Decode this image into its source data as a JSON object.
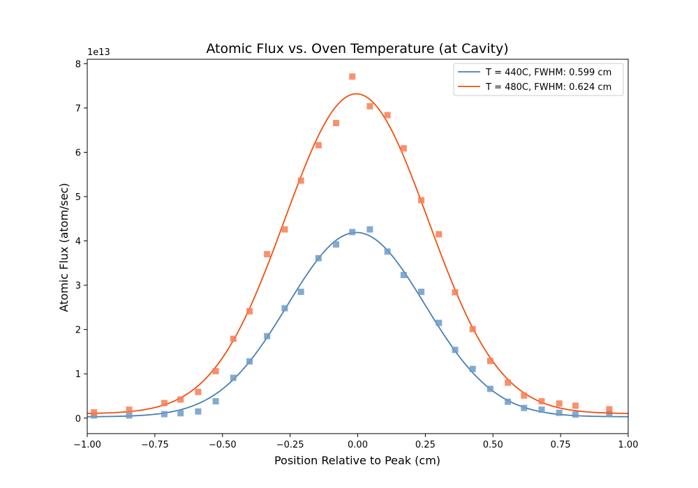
{
  "chart_data": {
    "type": "scatter",
    "title": "Atomic Flux vs. Oven Temperature (at Cavity)",
    "xlabel": "Position Relative to Peak (cm)",
    "ylabel": "Atomic Flux (atom/sec)",
    "y_offset_text": "1e13",
    "xlim": [
      -1.0,
      1.0
    ],
    "ylim": [
      -0.35,
      8.1
    ],
    "xticks": [
      -1.0,
      -0.75,
      -0.5,
      -0.25,
      0.0,
      0.25,
      0.5,
      0.75,
      1.0
    ],
    "xtick_labels": [
      "−1.00",
      "−0.75",
      "−0.50",
      "−0.25",
      "0.00",
      "0.25",
      "0.50",
      "0.75",
      "1.00"
    ],
    "yticks": [
      0,
      1,
      2,
      3,
      4,
      5,
      6,
      7,
      8
    ],
    "ytick_labels": [
      "0",
      "1",
      "2",
      "3",
      "4",
      "5",
      "6",
      "7",
      "8"
    ],
    "grid": false,
    "legend_position": "top-right",
    "series": [
      {
        "name": "T = 440C, FWHM: 0.599 cm",
        "line_color": "#4a7fb0",
        "marker_color": "#6e9bc8",
        "fit": {
          "amplitude": 4.16,
          "center": -0.005,
          "fwhm": 0.599,
          "baseline": 0.03
        },
        "points": [
          [
            -0.975,
            0.06
          ],
          [
            -0.845,
            0.06
          ],
          [
            -0.715,
            0.09
          ],
          [
            -0.655,
            0.11
          ],
          [
            -0.59,
            0.15
          ],
          [
            -0.525,
            0.38
          ],
          [
            -0.46,
            0.91
          ],
          [
            -0.4,
            1.28
          ],
          [
            -0.335,
            1.85
          ],
          [
            -0.27,
            2.48
          ],
          [
            -0.21,
            2.85
          ],
          [
            -0.145,
            3.61
          ],
          [
            -0.08,
            3.92
          ],
          [
            -0.02,
            4.2
          ],
          [
            0.045,
            4.26
          ],
          [
            0.11,
            3.76
          ],
          [
            0.17,
            3.23
          ],
          [
            0.235,
            2.85
          ],
          [
            0.3,
            2.15
          ],
          [
            0.36,
            1.54
          ],
          [
            0.425,
            1.11
          ],
          [
            0.49,
            0.66
          ],
          [
            0.555,
            0.37
          ],
          [
            0.615,
            0.23
          ],
          [
            0.68,
            0.19
          ],
          [
            0.745,
            0.12
          ],
          [
            0.805,
            0.08
          ],
          [
            0.93,
            0.1
          ]
        ]
      },
      {
        "name": "T = 480C, FWHM: 0.624 cm",
        "line_color": "#f0500e",
        "marker_color": "#f87d55",
        "fit": {
          "amplitude": 7.22,
          "center": -0.005,
          "fwhm": 0.624,
          "baseline": 0.1
        },
        "points": [
          [
            -0.975,
            0.13
          ],
          [
            -0.845,
            0.19
          ],
          [
            -0.715,
            0.34
          ],
          [
            -0.655,
            0.42
          ],
          [
            -0.59,
            0.59
          ],
          [
            -0.525,
            1.06
          ],
          [
            -0.46,
            1.79
          ],
          [
            -0.4,
            2.41
          ],
          [
            -0.335,
            3.7
          ],
          [
            -0.27,
            4.26
          ],
          [
            -0.21,
            5.36
          ],
          [
            -0.145,
            6.16
          ],
          [
            -0.08,
            6.66
          ],
          [
            -0.02,
            7.71
          ],
          [
            0.045,
            7.04
          ],
          [
            0.11,
            6.84
          ],
          [
            0.17,
            6.09
          ],
          [
            0.235,
            4.92
          ],
          [
            0.3,
            4.15
          ],
          [
            0.36,
            2.84
          ],
          [
            0.425,
            2.01
          ],
          [
            0.49,
            1.29
          ],
          [
            0.555,
            0.8
          ],
          [
            0.615,
            0.51
          ],
          [
            0.68,
            0.38
          ],
          [
            0.745,
            0.33
          ],
          [
            0.805,
            0.28
          ],
          [
            0.93,
            0.2
          ]
        ]
      }
    ]
  }
}
